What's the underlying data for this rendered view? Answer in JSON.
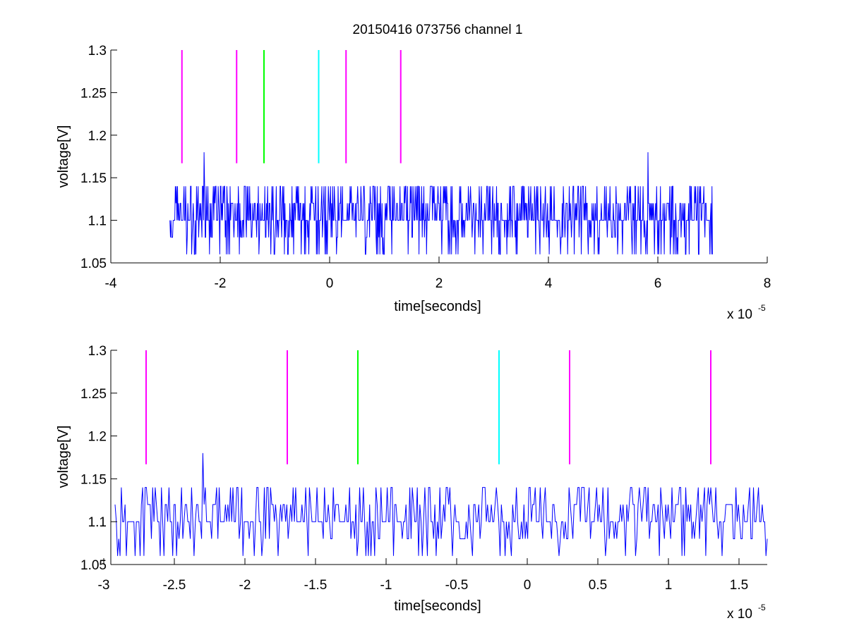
{
  "chart_data": [
    {
      "type": "line",
      "title": "20150416 073756 channel 1",
      "xlabel": "time[seconds]",
      "ylabel": "voltage[V]",
      "x_exponent_label": "x 10",
      "x_exponent": "-5",
      "xlim": [
        -4e-05,
        8e-05
      ],
      "ylim": [
        1.05,
        1.3
      ],
      "x_ticks": [
        -4,
        -2,
        0,
        2,
        4,
        6,
        8
      ],
      "x_tick_labels": [
        "-4",
        "-2",
        "0",
        "2",
        "4",
        "6",
        "8"
      ],
      "y_ticks": [
        1.05,
        1.1,
        1.15,
        1.2,
        1.25,
        1.3
      ],
      "y_tick_labels": [
        "1.05",
        "1.1",
        "1.15",
        "1.2",
        "1.25",
        "1.3"
      ],
      "grid": false,
      "series": [
        {
          "color": "#0000ff",
          "x_range": [
            -2.92e-05,
            7e-05
          ],
          "levels": [
            1.06,
            1.08,
            1.1,
            1.12,
            1.14
          ],
          "spikes": [
            [
              -2.3e-05,
              1.18
            ],
            [
              5.82e-05,
              1.18
            ]
          ]
        }
      ],
      "markers": [
        {
          "x": -2.7e-05,
          "color": "#ff00ff",
          "y": [
            1.167,
            1.3
          ]
        },
        {
          "x": -1.7e-05,
          "color": "#ff00ff",
          "y": [
            1.167,
            1.3
          ]
        },
        {
          "x": -1.2e-05,
          "color": "#00ff00",
          "y": [
            1.167,
            1.3
          ]
        },
        {
          "x": -2e-06,
          "color": "#00ffff",
          "y": [
            1.167,
            1.3
          ]
        },
        {
          "x": 3e-06,
          "color": "#ff00ff",
          "y": [
            1.167,
            1.3
          ]
        },
        {
          "x": 1.3e-05,
          "color": "#ff00ff",
          "y": [
            1.167,
            1.3
          ]
        }
      ]
    },
    {
      "type": "line",
      "title": "",
      "xlabel": "time[seconds]",
      "ylabel": "voltage[V]",
      "x_exponent_label": "x 10",
      "x_exponent": "-5",
      "xlim": [
        -2.95e-05,
        1.7e-05
      ],
      "ylim": [
        1.05,
        1.3
      ],
      "x_ticks": [
        -3,
        -2.5,
        -2,
        -1.5,
        -1,
        -0.5,
        0,
        0.5,
        1,
        1.5
      ],
      "x_tick_labels": [
        "-3",
        "-2.5",
        "-2",
        "-1.5",
        "-1",
        "-0.5",
        "0",
        "0.5",
        "1",
        "1.5"
      ],
      "y_ticks": [
        1.05,
        1.1,
        1.15,
        1.2,
        1.25,
        1.3
      ],
      "y_tick_labels": [
        "1.05",
        "1.1",
        "1.15",
        "1.2",
        "1.25",
        "1.3"
      ],
      "grid": false,
      "series": [
        {
          "color": "#0000ff",
          "x_range": [
            -2.92e-05,
            1.7e-05
          ],
          "levels": [
            1.06,
            1.08,
            1.1,
            1.12,
            1.14
          ],
          "spikes": [
            [
              -2.3e-05,
              1.18
            ]
          ]
        }
      ],
      "markers": [
        {
          "x": -2.7e-05,
          "color": "#ff00ff",
          "y": [
            1.167,
            1.3
          ]
        },
        {
          "x": -1.7e-05,
          "color": "#ff00ff",
          "y": [
            1.167,
            1.3
          ]
        },
        {
          "x": -1.2e-05,
          "color": "#00ff00",
          "y": [
            1.167,
            1.3
          ]
        },
        {
          "x": -2e-06,
          "color": "#00ffff",
          "y": [
            1.167,
            1.3
          ]
        },
        {
          "x": 3e-06,
          "color": "#ff00ff",
          "y": [
            1.167,
            1.3
          ]
        },
        {
          "x": 1.3e-05,
          "color": "#ff00ff",
          "y": [
            1.167,
            1.3
          ]
        }
      ]
    }
  ]
}
